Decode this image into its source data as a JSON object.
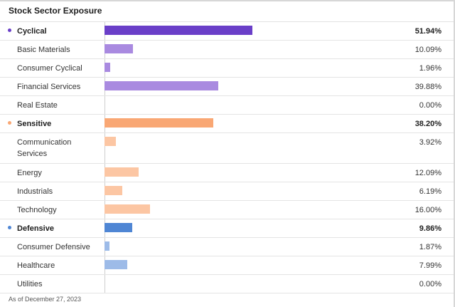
{
  "title": "Stock Sector Exposure",
  "footer": "As of December 27, 2023",
  "colors": {
    "cyclical": "#6a3fc8",
    "cyclical_light": "#a98ae0",
    "sensitive": "#f9a774",
    "sensitive_light": "#fcc6a3",
    "defensive": "#4f86d4",
    "defensive_light": "#9dbbe8"
  },
  "chart_data": {
    "type": "bar",
    "orientation": "horizontal",
    "title": "Stock Sector Exposure",
    "xlim": [
      0,
      100
    ],
    "unit": "%",
    "rows": [
      {
        "label": "Cyclical",
        "value": 51.94,
        "display": "51.94%",
        "group": true,
        "color": "#6a3fc8"
      },
      {
        "label": "Basic Materials",
        "value": 10.09,
        "display": "10.09%",
        "group": false,
        "color": "#a98ae0"
      },
      {
        "label": "Consumer Cyclical",
        "value": 1.96,
        "display": "1.96%",
        "group": false,
        "color": "#a98ae0"
      },
      {
        "label": "Financial Services",
        "value": 39.88,
        "display": "39.88%",
        "group": false,
        "color": "#a98ae0"
      },
      {
        "label": "Real Estate",
        "value": 0.0,
        "display": "0.00%",
        "group": false,
        "color": "#a98ae0"
      },
      {
        "label": "Sensitive",
        "value": 38.2,
        "display": "38.20%",
        "group": true,
        "color": "#f9a774"
      },
      {
        "label": "Communication Services",
        "value": 3.92,
        "display": "3.92%",
        "group": false,
        "color": "#fcc6a3"
      },
      {
        "label": "Energy",
        "value": 12.09,
        "display": "12.09%",
        "group": false,
        "color": "#fcc6a3"
      },
      {
        "label": "Industrials",
        "value": 6.19,
        "display": "6.19%",
        "group": false,
        "color": "#fcc6a3"
      },
      {
        "label": "Technology",
        "value": 16.0,
        "display": "16.00%",
        "group": false,
        "color": "#fcc6a3"
      },
      {
        "label": "Defensive",
        "value": 9.86,
        "display": "9.86%",
        "group": true,
        "color": "#4f86d4"
      },
      {
        "label": "Consumer Defensive",
        "value": 1.87,
        "display": "1.87%",
        "group": false,
        "color": "#9dbbe8"
      },
      {
        "label": "Healthcare",
        "value": 7.99,
        "display": "7.99%",
        "group": false,
        "color": "#9dbbe8"
      },
      {
        "label": "Utilities",
        "value": 0.0,
        "display": "0.00%",
        "group": false,
        "color": "#9dbbe8"
      }
    ]
  }
}
